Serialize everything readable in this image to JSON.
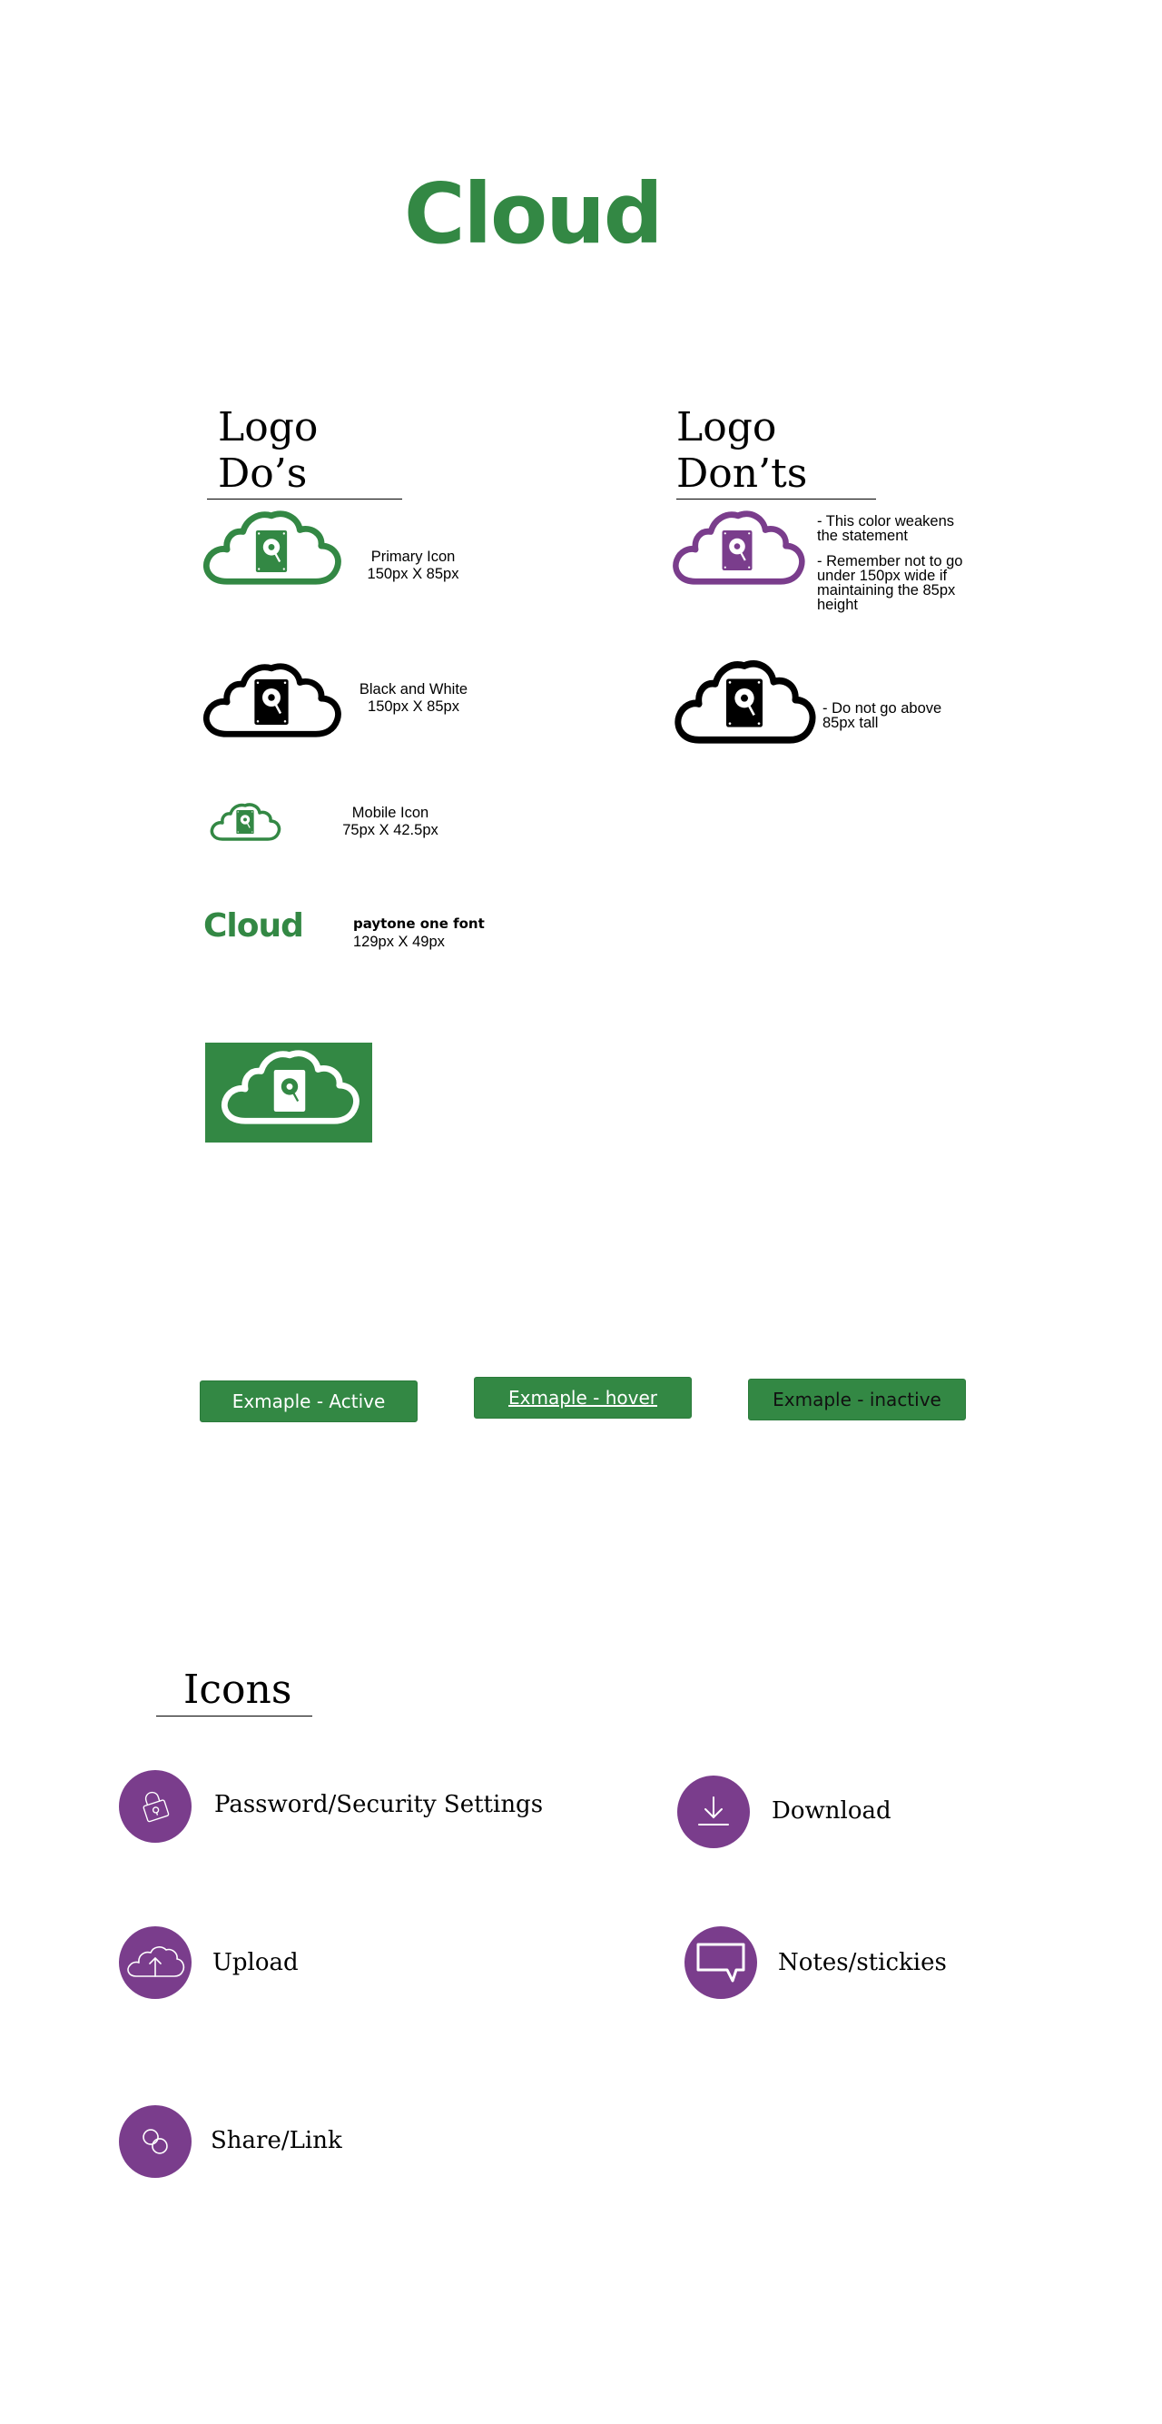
{
  "colors": {
    "brand_green": "#338844",
    "accent_purple": "#7a3d8c",
    "black": "#000000",
    "white": "#ffffff"
  },
  "logo": {
    "wordmark": "Cloud"
  },
  "dos": {
    "heading": "Logo Do’s",
    "primary": {
      "line1": "Primary Icon",
      "line2": "150px  X 85px"
    },
    "bw": {
      "line1": "Black and White",
      "line2": "150px  X 85px"
    },
    "mobile": {
      "line1": "Mobile Icon",
      "line2": "75px X 42.5px"
    },
    "font": {
      "wordmark": "Cloud",
      "line1": "paytone one font",
      "line2": "129px X 49px"
    }
  },
  "donts": {
    "heading": "Logo Don’ts",
    "purple": {
      "line1": "- This color weakens",
      "line2": "the statement",
      "line3": "- Remember not to go",
      "line4": "under 150px wide if",
      "line5": "maintaining the 85px",
      "line6": "height"
    },
    "tall": {
      "line1": "- Do not go above",
      "line2": "85px tall"
    }
  },
  "buttons": {
    "active": "Exmaple - Active",
    "hover": "Exmaple - hover",
    "inactive": "Exmaple - inactive"
  },
  "icons": {
    "heading": "Icons",
    "items": [
      {
        "label": "Password/Security Settings",
        "icon": "lock-icon"
      },
      {
        "label": "Download",
        "icon": "download-icon"
      },
      {
        "label": "Upload",
        "icon": "cloud-upload-icon"
      },
      {
        "label": "Notes/stickies",
        "icon": "speech-bubble-icon"
      },
      {
        "label": "Share/Link",
        "icon": "link-icon"
      }
    ]
  }
}
